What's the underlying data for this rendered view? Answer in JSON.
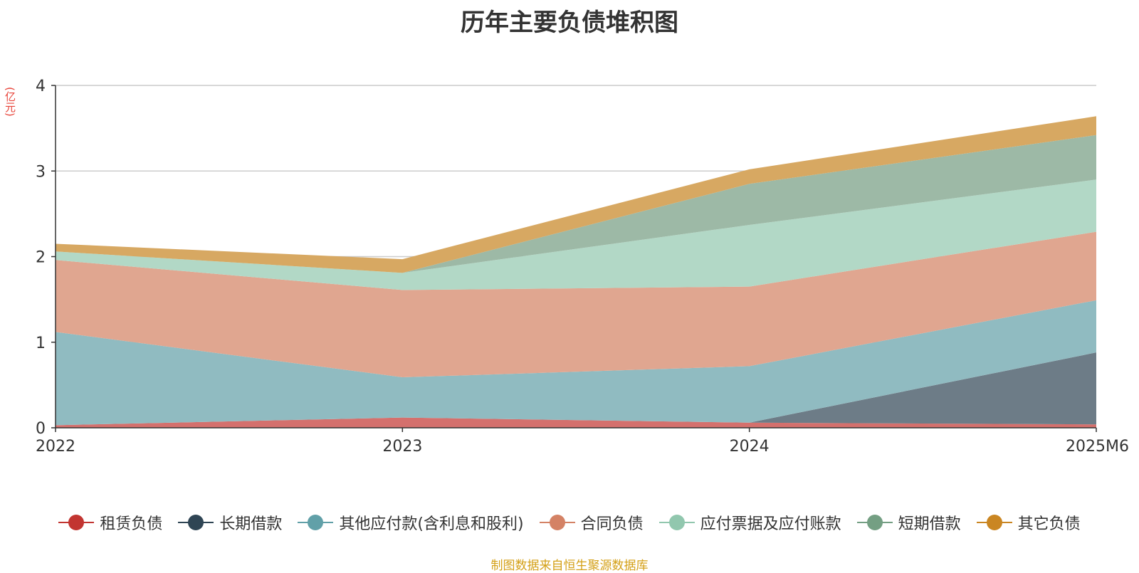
{
  "chart_data": {
    "type": "area",
    "stacked": true,
    "title": "历年主要负债堆积图",
    "unit_label": "(亿元)",
    "categories": [
      "2022",
      "2023",
      "2024",
      "2025M6"
    ],
    "ylim": [
      0,
      4
    ],
    "yticks": [
      0,
      1,
      2,
      3,
      4
    ],
    "grid": true,
    "legend_position": "bottom",
    "series": [
      {
        "name": "租赁负债",
        "color": "#c23531",
        "fill": "#d4706d",
        "values": [
          0.03,
          0.12,
          0.06,
          0.04
        ]
      },
      {
        "name": "长期借款",
        "color": "#2f4554",
        "fill": "#6d7c87",
        "values": [
          0.0,
          0.0,
          0.0,
          0.84
        ]
      },
      {
        "name": "其他应付款(含利息和股利)",
        "color": "#61a0a8",
        "fill": "#90bbc1",
        "values": [
          1.09,
          0.47,
          0.66,
          0.61
        ]
      },
      {
        "name": "合同负债",
        "color": "#d48265",
        "fill": "#e0a690",
        "values": [
          0.84,
          1.02,
          0.93,
          0.8
        ]
      },
      {
        "name": "应付票据及应付账款",
        "color": "#91c7ae",
        "fill": "#b2d8c6",
        "values": [
          0.1,
          0.2,
          0.72,
          0.61
        ]
      },
      {
        "name": "短期借款",
        "color": "#749f83",
        "fill": "#9db9a6",
        "values": [
          0.0,
          0.0,
          0.48,
          0.52
        ]
      },
      {
        "name": "其它负债",
        "color": "#ca8622",
        "fill": "#d7a862",
        "values": [
          0.09,
          0.16,
          0.17,
          0.22
        ]
      }
    ],
    "source_note": "制图数据来自恒生聚源数据库"
  }
}
